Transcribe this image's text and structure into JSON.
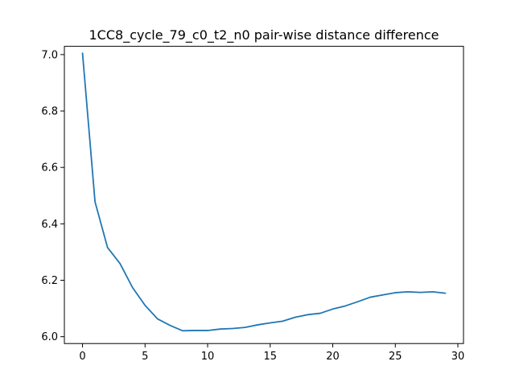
{
  "chart_data": {
    "type": "line",
    "title": "1CC8_cycle_79_c0_t2_n0 pair-wise distance difference",
    "xlabel": "",
    "ylabel": "",
    "xlim": [
      -1.45,
      30.45
    ],
    "ylim": [
      5.9757,
      7.0293
    ],
    "xticks": [
      0,
      5,
      10,
      15,
      20,
      25,
      30
    ],
    "yticks": [
      6.0,
      6.2,
      6.4,
      6.6,
      6.8,
      7.0
    ],
    "xtick_labels": [
      "0",
      "5",
      "10",
      "15",
      "20",
      "25",
      "30"
    ],
    "ytick_labels": [
      "6.0",
      "6.2",
      "6.4",
      "6.6",
      "6.8",
      "7.0"
    ],
    "grid": false,
    "series": [
      {
        "color": "#1f77b4",
        "x": [
          0,
          1,
          2,
          3,
          4,
          5,
          6,
          7,
          8,
          9,
          10,
          11,
          12,
          13,
          14,
          15,
          16,
          17,
          18,
          19,
          20,
          21,
          22,
          23,
          24,
          25,
          26,
          27,
          28,
          29
        ],
        "y": [
          7.005,
          6.478,
          6.316,
          6.259,
          6.174,
          6.111,
          6.063,
          6.04,
          6.021,
          6.022,
          6.022,
          6.027,
          6.029,
          6.033,
          6.042,
          6.049,
          6.055,
          6.069,
          6.078,
          6.083,
          6.098,
          6.109,
          6.124,
          6.14,
          6.148,
          6.156,
          6.159,
          6.157,
          6.159,
          6.154
        ]
      }
    ]
  }
}
